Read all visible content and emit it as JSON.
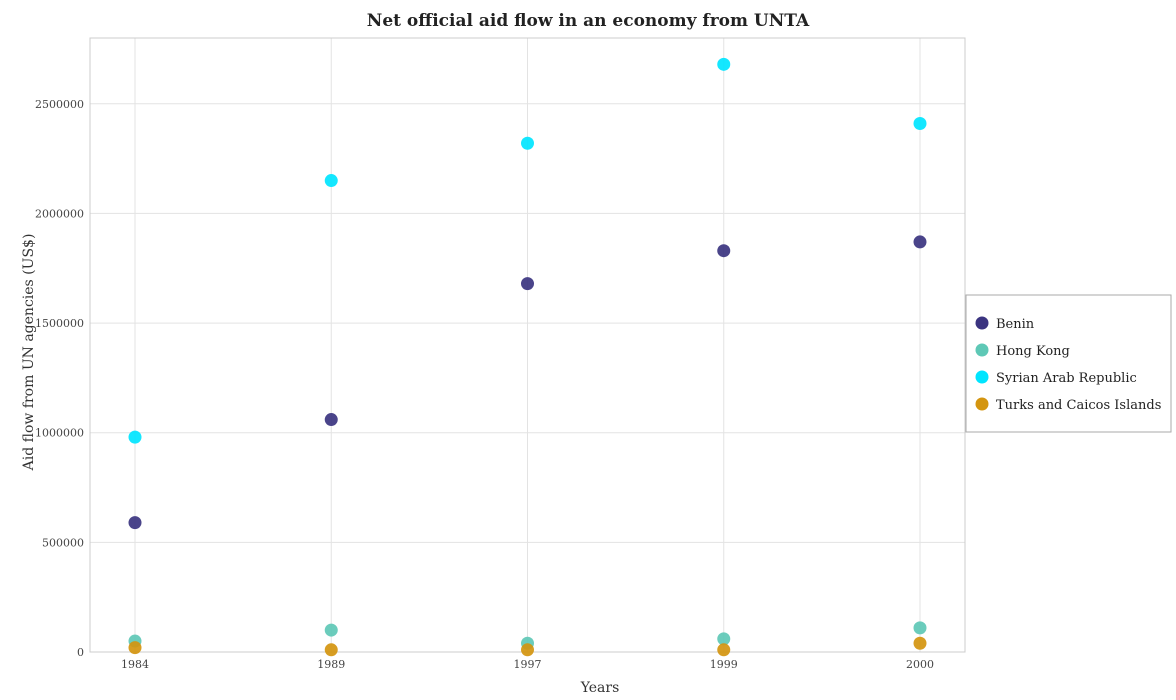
{
  "chart_data": {
    "type": "scatter",
    "title": "Net official aid flow in an economy from UNTA",
    "xlabel": "Years",
    "ylabel": "Aid flow from UN agencies (US$)",
    "categories": [
      "1984",
      "1989",
      "1997",
      "1999",
      "2000"
    ],
    "ylim": [
      0,
      2800000
    ],
    "yticks": [
      0,
      500000,
      1000000,
      1500000,
      2000000,
      2500000
    ],
    "ytick_labels": [
      "0",
      "500000",
      "1000000",
      "1500000",
      "2000000",
      "2500000"
    ],
    "grid": true,
    "legend_position": "right",
    "series": [
      {
        "name": "Benin",
        "color": "#3b3480",
        "values": [
          590000,
          1060000,
          1680000,
          1830000,
          1870000
        ]
      },
      {
        "name": "Hong Kong",
        "color": "#5ec8b6",
        "values": [
          50000,
          100000,
          40000,
          60000,
          110000
        ]
      },
      {
        "name": "Syrian Arab Republic",
        "color": "#00e5ff",
        "values": [
          980000,
          2150000,
          2320000,
          2680000,
          2410000
        ]
      },
      {
        "name": "Turks and Caicos Islands",
        "color": "#d4950f",
        "values": [
          20000,
          10000,
          10000,
          10000,
          40000
        ]
      }
    ]
  }
}
